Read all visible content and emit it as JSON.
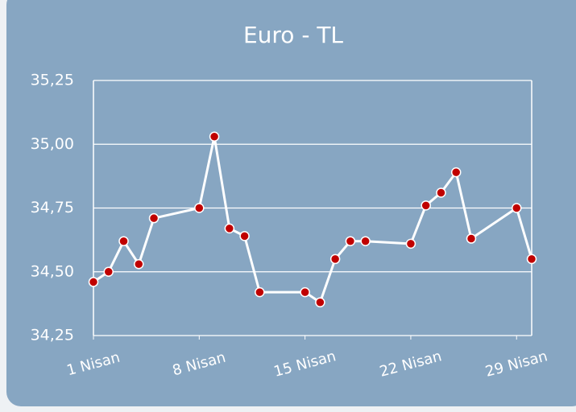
{
  "chart_data": {
    "type": "line",
    "title": "Euro - TL",
    "x": [
      1,
      2,
      3,
      4,
      5,
      8,
      9,
      10,
      11,
      12,
      15,
      16,
      17,
      18,
      19,
      22,
      23,
      24,
      25,
      26,
      29,
      30
    ],
    "series": [
      {
        "color": "#ffffff",
        "marker_color": "#c00000",
        "values": [
          34.46,
          34.5,
          34.62,
          34.53,
          34.71,
          34.75,
          35.03,
          34.67,
          34.64,
          34.42,
          34.42,
          34.38,
          34.55,
          34.62,
          34.62,
          34.61,
          34.76,
          34.81,
          34.89,
          34.63,
          34.75,
          34.55
        ]
      }
    ],
    "xlim": [
      1,
      30
    ],
    "xticks": [
      {
        "value": 1,
        "label": "1 Nisan"
      },
      {
        "value": 8,
        "label": "8 Nisan"
      },
      {
        "value": 15,
        "label": "15 Nisan"
      },
      {
        "value": 22,
        "label": "22 Nisan"
      },
      {
        "value": 29,
        "label": "29 Nisan"
      }
    ],
    "ylim": [
      34.25,
      35.25
    ],
    "yticks": [
      {
        "value": 34.25,
        "label": "34,25"
      },
      {
        "value": 34.5,
        "label": "34,50"
      },
      {
        "value": 34.75,
        "label": "34,75"
      },
      {
        "value": 35.0,
        "label": "35,00"
      },
      {
        "value": 35.25,
        "label": "35,25"
      }
    ],
    "grid": true
  }
}
